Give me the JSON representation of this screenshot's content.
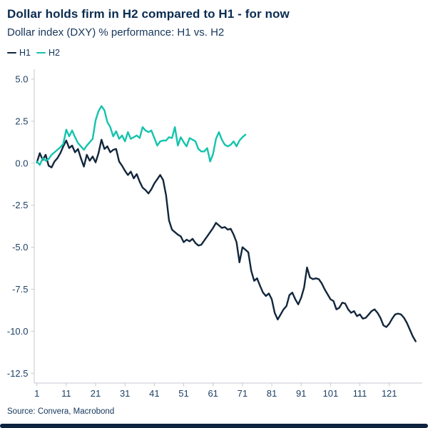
{
  "header": {
    "title": "Dollar holds firm in H2 compared to H1 - for now",
    "subtitle": "Dollar index (DXY) % performance: H1 vs. H2"
  },
  "legend": {
    "items": [
      {
        "label": "H1",
        "color": "#12263c"
      },
      {
        "label": "H2",
        "color": "#14c3ad"
      }
    ]
  },
  "footer": {
    "source": "Source: Convera, Macrobond"
  },
  "colors": {
    "title_text": "#0a2c50",
    "subtitle_text": "#16365c",
    "tick_text": "#1d3f63",
    "axis_line": "#c5cad0",
    "h1_line": "#12263c",
    "h2_line": "#14c3ad",
    "footer_bar": "#0d2340",
    "background": "#ffffff"
  },
  "chart_data": {
    "type": "line",
    "title": "Dollar holds firm in H2 compared to H1 - for now",
    "subtitle": "Dollar index (DXY) % performance: H1 vs. H2",
    "xlabel": "",
    "ylabel": "",
    "legend_position": "top-left",
    "grid": false,
    "x_ticks": [
      1,
      11,
      21,
      31,
      41,
      51,
      61,
      71,
      81,
      91,
      101,
      111,
      121
    ],
    "y_ticks": [
      5.0,
      2.5,
      0.0,
      -2.5,
      -5.0,
      -7.5,
      -10.0,
      -12.5
    ],
    "y_tick_labels": [
      "5.0",
      "2.5",
      "0.0",
      "-2.5",
      "-5.0",
      "-7.5",
      "-10.0",
      "-12.5"
    ],
    "xlim": [
      1,
      132
    ],
    "ylim": [
      -13.1,
      5.6
    ],
    "x_start": 1,
    "x_step": 1,
    "series": [
      {
        "name": "H1",
        "color": "#12263c",
        "values": [
          0.05,
          0.6,
          0.2,
          0.5,
          -0.15,
          -0.25,
          0.1,
          0.3,
          0.6,
          1.0,
          1.35,
          0.9,
          1.05,
          0.65,
          0.85,
          0.3,
          -0.2,
          0.5,
          0.15,
          0.4,
          0.05,
          0.6,
          1.4,
          0.85,
          1.0,
          0.65,
          0.8,
          0.85,
          0.1,
          -0.15,
          -0.45,
          -0.7,
          -0.5,
          -0.9,
          -0.65,
          -1.1,
          -1.45,
          -1.6,
          -1.8,
          -1.55,
          -1.2,
          -0.95,
          -0.7,
          -1.0,
          -1.9,
          -3.4,
          -3.95,
          -4.1,
          -4.25,
          -4.35,
          -4.7,
          -4.55,
          -4.65,
          -4.5,
          -4.75,
          -4.9,
          -4.85,
          -4.6,
          -4.35,
          -4.1,
          -3.85,
          -3.55,
          -3.7,
          -3.85,
          -3.8,
          -3.95,
          -3.9,
          -4.25,
          -4.7,
          -5.9,
          -5.0,
          -5.15,
          -5.3,
          -6.4,
          -7.0,
          -6.85,
          -7.3,
          -7.7,
          -7.9,
          -7.75,
          -8.1,
          -8.9,
          -9.3,
          -9.0,
          -8.7,
          -8.5,
          -7.85,
          -7.7,
          -8.1,
          -8.4,
          -8.0,
          -7.4,
          -6.2,
          -6.8,
          -6.9,
          -6.85,
          -6.9,
          -7.15,
          -7.5,
          -7.8,
          -8.1,
          -8.2,
          -8.7,
          -8.6,
          -8.3,
          -8.35,
          -8.7,
          -8.9,
          -8.8,
          -9.1,
          -9.0,
          -9.25,
          -9.2,
          -9.0,
          -8.8,
          -8.7,
          -8.9,
          -9.2,
          -9.65,
          -9.75,
          -9.55,
          -9.25,
          -9.0,
          -8.95,
          -9.0,
          -9.2,
          -9.5,
          -9.9,
          -10.3,
          -10.6
        ]
      },
      {
        "name": "H2",
        "color": "#14c3ad",
        "values": [
          0.1,
          -0.1,
          0.3,
          0.15,
          0.25,
          0.5,
          0.65,
          0.8,
          0.95,
          1.15,
          2.0,
          1.6,
          1.95,
          1.55,
          1.2,
          1.0,
          0.8,
          1.05,
          1.25,
          1.45,
          2.55,
          3.1,
          3.4,
          3.15,
          2.45,
          2.15,
          1.6,
          1.9,
          1.45,
          1.65,
          1.3,
          1.85,
          1.45,
          1.55,
          1.65,
          1.5,
          2.15,
          1.95,
          1.85,
          1.95,
          1.5,
          1.05,
          1.3,
          1.35,
          1.35,
          1.55,
          1.5,
          2.15,
          1.05,
          1.55,
          1.25,
          1.0,
          1.5,
          1.4,
          1.3,
          0.85,
          0.7,
          0.7,
          0.9,
          0.1,
          0.55,
          1.45,
          1.85,
          1.4,
          1.1,
          1.0,
          1.1,
          1.3,
          1.0,
          1.35,
          1.55,
          1.7
        ]
      }
    ]
  }
}
